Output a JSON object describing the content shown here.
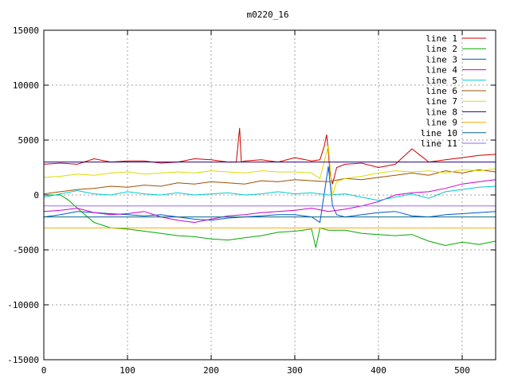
{
  "chart_data": {
    "type": "line",
    "title": "m0220_16",
    "xlabel": "",
    "ylabel": "",
    "xlim": [
      0,
      540
    ],
    "ylim": [
      -15000,
      15000
    ],
    "x_ticks": [
      0,
      100,
      200,
      300,
      400,
      500
    ],
    "y_ticks": [
      -15000,
      -10000,
      -5000,
      0,
      5000,
      10000,
      15000
    ],
    "x_tick_labels": [
      "0",
      "100",
      "200",
      "300",
      "400",
      "500"
    ],
    "y_tick_labels": [
      "-15000",
      "-10000",
      "-5000",
      "0",
      "5000",
      "10000",
      "15000"
    ],
    "grid": true,
    "legend_position": "top-right",
    "series": [
      {
        "name": "line 1",
        "color": "#cc0000",
        "x": [
          0,
          20,
          40,
          60,
          80,
          100,
          120,
          140,
          160,
          180,
          200,
          220,
          230,
          234,
          236,
          240,
          260,
          280,
          300,
          320,
          330,
          335,
          338,
          340,
          342,
          345,
          350,
          360,
          380,
          400,
          420,
          440,
          450,
          460,
          480,
          500,
          520,
          540
        ],
        "y": [
          2800,
          2900,
          2800,
          3300,
          3000,
          3100,
          3100,
          2900,
          3000,
          3300,
          3200,
          3000,
          3000,
          6100,
          3000,
          3100,
          3200,
          3000,
          3400,
          3100,
          3200,
          4400,
          5500,
          4000,
          2000,
          1000,
          2500,
          2800,
          2900,
          2500,
          2800,
          4200,
          3600,
          3000,
          3200,
          3400,
          3600,
          3700
        ]
      },
      {
        "name": "line 2",
        "color": "#00aa00",
        "x": [
          0,
          20,
          30,
          40,
          60,
          80,
          100,
          120,
          140,
          160,
          180,
          200,
          220,
          240,
          260,
          280,
          300,
          320,
          325,
          330,
          340,
          360,
          380,
          400,
          420,
          440,
          460,
          480,
          500,
          520,
          540
        ],
        "y": [
          0,
          0,
          -500,
          -1200,
          -2500,
          -3000,
          -3100,
          -3300,
          -3500,
          -3700,
          -3800,
          -4000,
          -4100,
          -3900,
          -3700,
          -3400,
          -3300,
          -3100,
          -4800,
          -3000,
          -3200,
          -3200,
          -3500,
          -3600,
          -3700,
          -3600,
          -4200,
          -4600,
          -4300,
          -4500,
          -4200
        ]
      },
      {
        "name": "line 3",
        "color": "#0055cc",
        "x": [
          0,
          20,
          40,
          60,
          80,
          100,
          120,
          140,
          160,
          180,
          200,
          220,
          240,
          260,
          280,
          300,
          320,
          330,
          340,
          345,
          350,
          360,
          380,
          400,
          420,
          440,
          460,
          480,
          500,
          520,
          540
        ],
        "y": [
          -2000,
          -1800,
          -1500,
          -1600,
          -1700,
          -1800,
          -1900,
          -1800,
          -2000,
          -2200,
          -2300,
          -2100,
          -2000,
          -1900,
          -1800,
          -1800,
          -2000,
          -2500,
          2600,
          -1000,
          -1800,
          -2000,
          -1800,
          -1600,
          -1500,
          -1900,
          -2000,
          -1800,
          -1700,
          -1600,
          -1500
        ]
      },
      {
        "name": "line 4",
        "color": "#cc00cc",
        "x": [
          0,
          20,
          40,
          60,
          80,
          100,
          120,
          140,
          160,
          180,
          200,
          220,
          240,
          260,
          280,
          300,
          320,
          340,
          360,
          380,
          400,
          420,
          440,
          460,
          480,
          500,
          520,
          540
        ],
        "y": [
          -1500,
          -1400,
          -1200,
          -1600,
          -1800,
          -1700,
          -1500,
          -2000,
          -2300,
          -2500,
          -2200,
          -1900,
          -1800,
          -1600,
          -1500,
          -1400,
          -1200,
          -1500,
          -1300,
          -1000,
          -600,
          0,
          200,
          300,
          600,
          1000,
          1200,
          1400
        ]
      },
      {
        "name": "line 5",
        "color": "#00cccc",
        "x": [
          0,
          20,
          40,
          60,
          80,
          100,
          120,
          140,
          160,
          180,
          200,
          220,
          240,
          260,
          280,
          300,
          320,
          340,
          360,
          380,
          400,
          420,
          440,
          460,
          480,
          500,
          520,
          540
        ],
        "y": [
          -200,
          100,
          400,
          100,
          0,
          300,
          100,
          0,
          200,
          0,
          100,
          200,
          0,
          100,
          300,
          100,
          200,
          0,
          100,
          -200,
          -500,
          -200,
          100,
          -300,
          300,
          500,
          700,
          800
        ]
      },
      {
        "name": "line 6",
        "color": "#a05000",
        "x": [
          0,
          20,
          40,
          60,
          80,
          100,
          120,
          140,
          160,
          180,
          200,
          220,
          240,
          260,
          280,
          300,
          320,
          340,
          360,
          380,
          400,
          420,
          440,
          460,
          480,
          500,
          520,
          540
        ],
        "y": [
          100,
          300,
          500,
          600,
          800,
          700,
          900,
          800,
          1100,
          1000,
          1200,
          1100,
          1000,
          1300,
          1200,
          1400,
          1300,
          1200,
          1500,
          1400,
          1600,
          1800,
          2000,
          1800,
          2200,
          2000,
          2300,
          2100
        ]
      },
      {
        "name": "line 7",
        "color": "#dddd00",
        "x": [
          0,
          20,
          40,
          60,
          80,
          100,
          120,
          140,
          160,
          180,
          200,
          220,
          240,
          260,
          280,
          300,
          320,
          330,
          340,
          345,
          350,
          360,
          380,
          400,
          420,
          440,
          460,
          480,
          500,
          520,
          540
        ],
        "y": [
          1600,
          1700,
          1900,
          1800,
          2000,
          2100,
          1900,
          2000,
          2100,
          2000,
          2200,
          2100,
          2000,
          2200,
          2100,
          2100,
          2000,
          1500,
          4500,
          0,
          1200,
          1500,
          1700,
          2000,
          2200,
          2100,
          2200,
          2000,
          2300,
          2200,
          2400
        ]
      },
      {
        "name": "line 8",
        "color": "#220088",
        "x": [
          0,
          540
        ],
        "y": [
          3000,
          3000
        ]
      },
      {
        "name": "line 9",
        "color": "#ffaa00",
        "x": [
          0,
          540
        ],
        "y": [
          -3000,
          -3000
        ]
      },
      {
        "name": "line 10",
        "color": "#006688",
        "x": [
          0,
          540
        ],
        "y": [
          -2000,
          -2000
        ]
      },
      {
        "name": "line 11",
        "color": "#9966ff",
        "x": [
          0,
          540
        ],
        "y": [
          -1000,
          -1000
        ]
      }
    ]
  }
}
